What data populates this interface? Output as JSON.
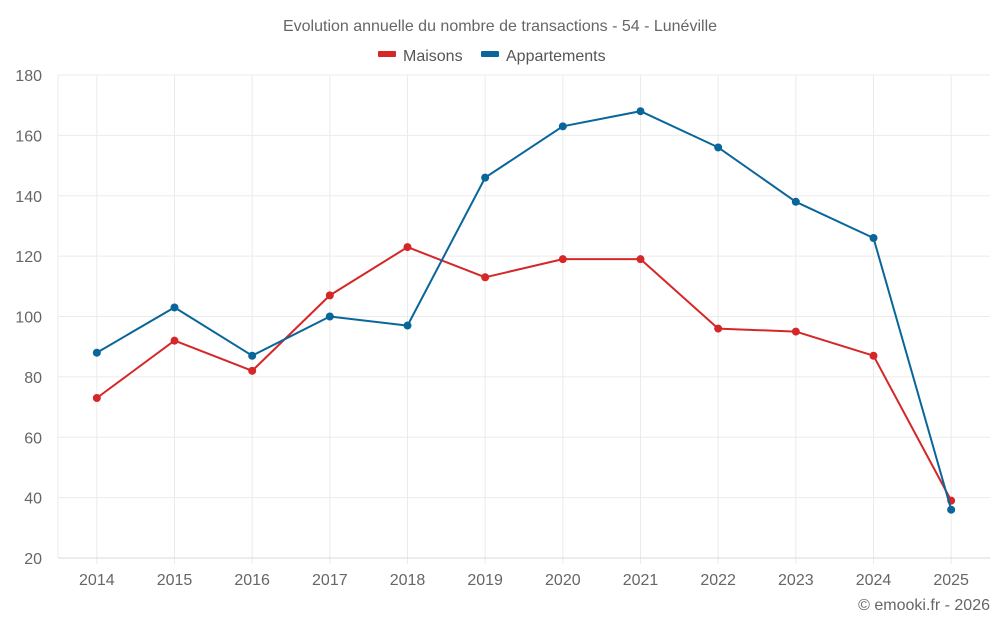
{
  "chart_data": {
    "type": "line",
    "title": "Evolution annuelle du nombre de transactions - 54 - Lunéville",
    "xlabel": "",
    "ylabel": "",
    "x": [
      "2014",
      "2015",
      "2016",
      "2017",
      "2018",
      "2019",
      "2020",
      "2021",
      "2022",
      "2023",
      "2024",
      "2025"
    ],
    "ylim": [
      20,
      180
    ],
    "yticks": [
      20,
      40,
      60,
      80,
      100,
      120,
      140,
      160,
      180
    ],
    "grid": true,
    "legend_position": "top-center",
    "series": [
      {
        "name": "Maisons",
        "color": "#d62728",
        "values": [
          73,
          92,
          82,
          107,
          123,
          113,
          119,
          119,
          96,
          95,
          87,
          39
        ]
      },
      {
        "name": "Appartements",
        "color": "#09669b",
        "values": [
          88,
          103,
          87,
          100,
          97,
          146,
          163,
          168,
          156,
          138,
          126,
          36
        ]
      }
    ]
  },
  "footer": "© emooki.fr - 2026"
}
